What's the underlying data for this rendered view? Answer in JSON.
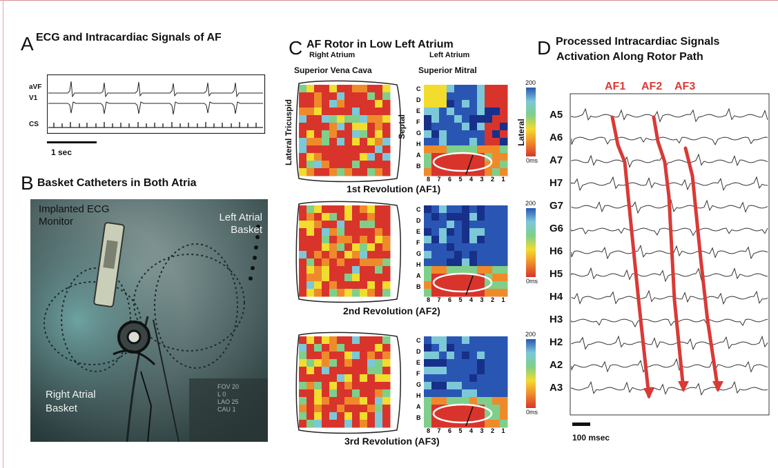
{
  "panelA": {
    "letter": "A",
    "title": "ECG and Intracardiac Signals of AF",
    "leads": [
      "aVF",
      "V1",
      "CS"
    ],
    "scale": "1 sec"
  },
  "panelB": {
    "letter": "B",
    "title": "Basket Catheters in Both Atria",
    "label_monitor": [
      "Implanted ECG",
      "Monitor"
    ],
    "label_left": [
      "Left Atrial",
      "Basket"
    ],
    "label_right": [
      "Right Atrial",
      "Basket"
    ],
    "fluoro_info": [
      [
        "FOV",
        "20"
      ],
      [
        "L",
        "0"
      ],
      [
        "LAO",
        "25"
      ],
      [
        "CAU",
        "1"
      ]
    ]
  },
  "panelC": {
    "letter": "C",
    "title": "AF Rotor in Low Left Atrium",
    "right_atrium": "Right Atrium",
    "left_atrium": "Left Atrium",
    "superior_vena_cava": "Superior Vena Cava",
    "superior_mitral": "Superior Mitral",
    "lateral_tricuspid": "Lateral Tricuspid",
    "septal": "Septal",
    "lateral": "Lateral",
    "row_labels": [
      "C",
      "D",
      "E",
      "F",
      "G",
      "H",
      "A",
      "B"
    ],
    "col_labels": [
      "8",
      "7",
      "6",
      "5",
      "4",
      "3",
      "2",
      "1"
    ],
    "colorbar_max": "200",
    "colorbar_min": "0ms",
    "revolutions": [
      "1st Revolution (AF1)",
      "2nd Revolution (AF2)",
      "3rd Revolution (AF3)"
    ]
  },
  "panelD": {
    "letter": "D",
    "title_line1": "Processed Intracardiac Signals",
    "title_line2": "Activation Along Rotor Path",
    "af_labels": [
      "AF1",
      "AF2",
      "AF3"
    ],
    "channels": [
      "A5",
      "A6",
      "A7",
      "H7",
      "G7",
      "G6",
      "H6",
      "H5",
      "H4",
      "H3",
      "H2",
      "A2",
      "A3"
    ],
    "scale": "100 msec"
  },
  "colors": {
    "accent_red": "#d93a36",
    "map_red": "#d8342b",
    "map_orange": "#ef8a2b",
    "map_yellow": "#f2dc2e",
    "map_green": "#7fcf8a",
    "map_cyan": "#7cc8d8",
    "map_blue": "#2a56b3",
    "map_darkblue": "#17308a",
    "fluoro_dark": "#263a3c"
  }
}
